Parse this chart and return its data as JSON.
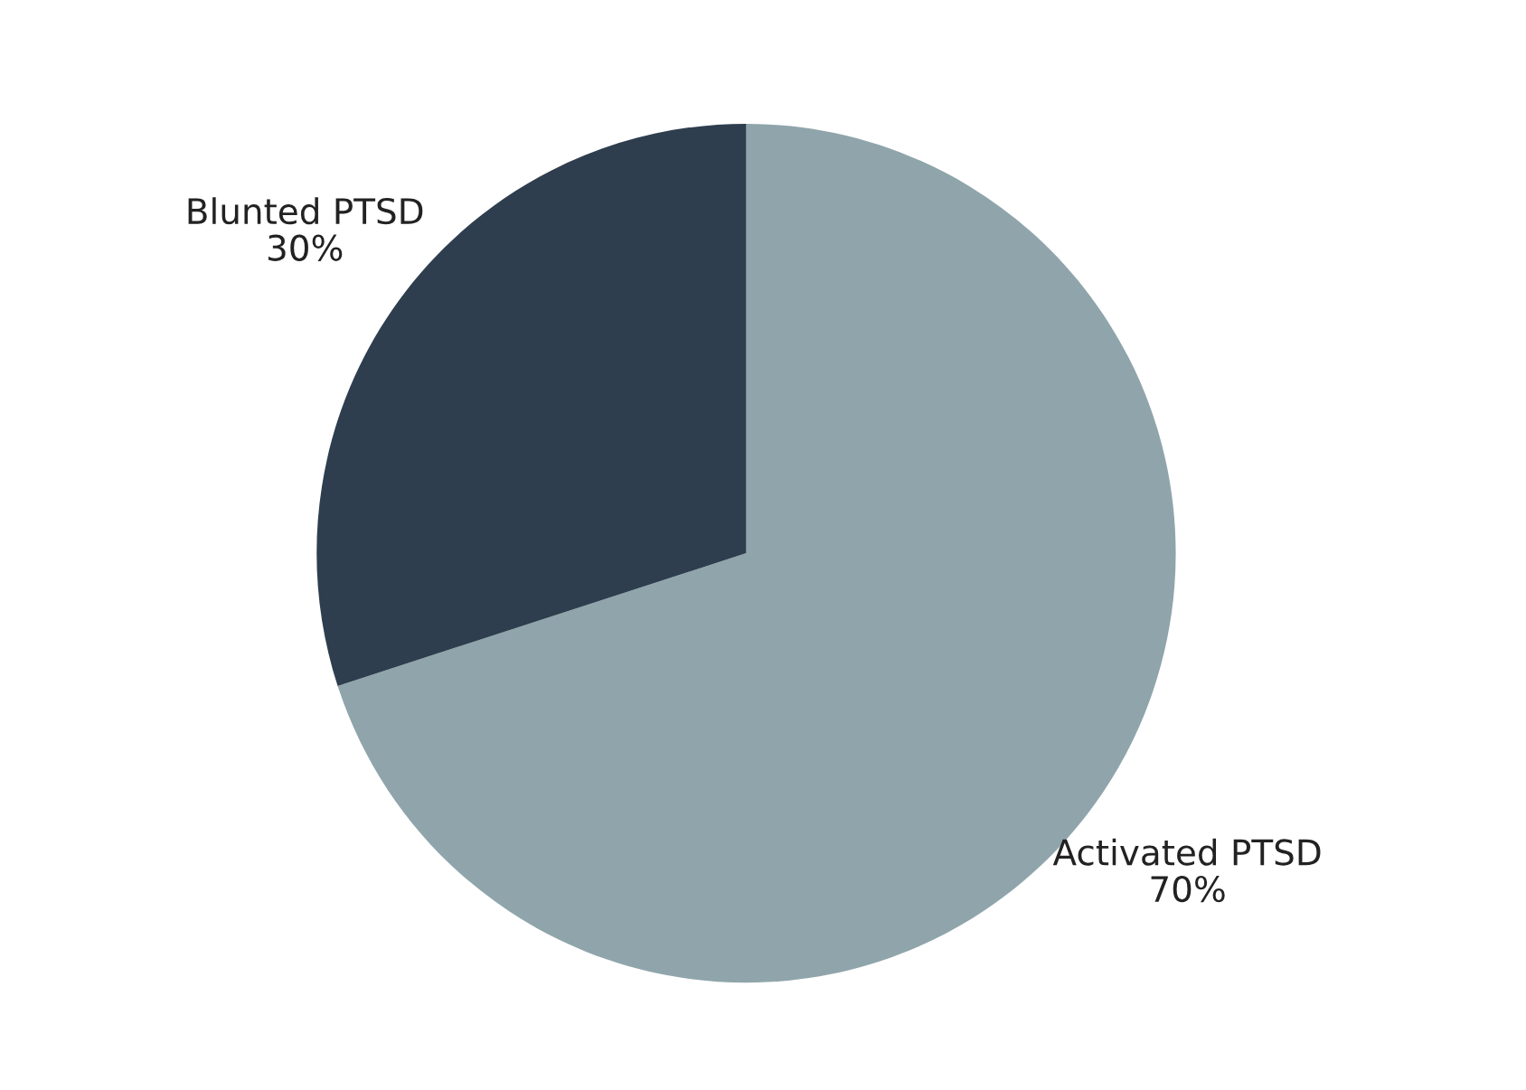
{
  "chart_data": {
    "type": "pie",
    "categories": [
      "Activated PTSD",
      "Blunted PTSD"
    ],
    "values": [
      70,
      30
    ],
    "colors": [
      "#8fa5ab",
      "#2e3e4e"
    ],
    "value_labels": [
      "70%",
      "30%"
    ]
  }
}
